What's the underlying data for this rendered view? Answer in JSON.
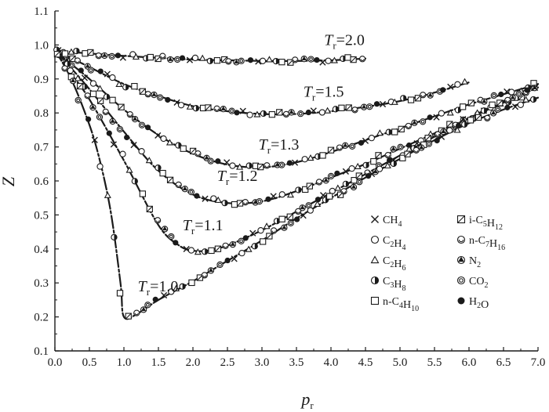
{
  "chart_data": {
    "type": "line",
    "xlabel": "p",
    "xlabel_sub": "r",
    "ylabel": "Z",
    "xlim": [
      0.0,
      7.0
    ],
    "ylim": [
      0.1,
      1.1
    ],
    "xticks": [
      "0.0",
      "0.5",
      "1.0",
      "1.5",
      "2.0",
      "2.5",
      "3.0",
      "3.5",
      "4.0",
      "4.5",
      "5.0",
      "5.5",
      "6.0",
      "6.5",
      "7.0"
    ],
    "yticks": [
      "0.1",
      "0.2",
      "0.3",
      "0.4",
      "0.5",
      "0.6",
      "0.7",
      "0.8",
      "0.9",
      "1.0",
      "1.1"
    ],
    "grid": false,
    "legend_position": "right, inside plot",
    "curves": [
      {
        "label_main": "T",
        "label_sub": "r",
        "label_value": "=2.0",
        "label_at": [
          3.9,
          1.0
        ],
        "x": [
          0.0,
          0.2,
          0.5,
          1.0,
          1.5,
          2.0,
          2.5,
          3.0,
          3.5,
          4.0,
          4.5
        ],
        "y": [
          0.985,
          0.98,
          0.975,
          0.968,
          0.962,
          0.957,
          0.955,
          0.953,
          0.953,
          0.955,
          0.96
        ]
      },
      {
        "label_main": "T",
        "label_sub": "r",
        "label_value": "=1.5",
        "label_at": [
          3.6,
          0.848
        ],
        "x": [
          0.0,
          0.2,
          0.5,
          1.0,
          1.5,
          2.0,
          2.5,
          3.0,
          3.5,
          4.0,
          4.5,
          5.0,
          5.5,
          6.0
        ],
        "y": [
          0.985,
          0.965,
          0.935,
          0.885,
          0.85,
          0.82,
          0.805,
          0.797,
          0.797,
          0.805,
          0.818,
          0.835,
          0.86,
          0.89
        ]
      },
      {
        "label_main": "T",
        "label_sub": "r",
        "label_value": "=1.3",
        "label_at": [
          2.95,
          0.692
        ],
        "x": [
          0.0,
          0.2,
          0.5,
          1.0,
          1.5,
          2.0,
          2.5,
          3.0,
          3.5,
          4.0,
          4.5,
          5.0,
          5.5,
          6.0,
          6.5,
          7.0
        ],
        "y": [
          0.985,
          0.95,
          0.9,
          0.81,
          0.735,
          0.68,
          0.648,
          0.64,
          0.655,
          0.685,
          0.72,
          0.755,
          0.79,
          0.825,
          0.855,
          0.885
        ]
      },
      {
        "label_main": "T",
        "label_sub": "r",
        "label_value": "=1.2",
        "label_at": [
          2.35,
          0.6
        ],
        "x": [
          0.0,
          0.2,
          0.5,
          1.0,
          1.5,
          2.0,
          2.5,
          3.0,
          3.5,
          4.0,
          4.5,
          5.0,
          5.5,
          6.0,
          6.5,
          7.0
        ],
        "y": [
          0.985,
          0.94,
          0.87,
          0.745,
          0.63,
          0.56,
          0.535,
          0.54,
          0.57,
          0.61,
          0.65,
          0.695,
          0.74,
          0.785,
          0.83,
          0.875
        ]
      },
      {
        "label_main": "T",
        "label_sub": "r",
        "label_value": "=1.1",
        "label_at": [
          1.85,
          0.455
        ],
        "x": [
          0.0,
          0.2,
          0.5,
          1.0,
          1.5,
          1.8,
          2.0,
          2.2,
          2.5,
          3.0,
          3.5,
          4.0,
          4.5,
          5.0,
          5.5,
          6.0,
          6.5,
          7.0
        ],
        "y": [
          0.985,
          0.925,
          0.84,
          0.66,
          0.47,
          0.41,
          0.395,
          0.395,
          0.41,
          0.455,
          0.51,
          0.565,
          0.62,
          0.675,
          0.73,
          0.785,
          0.835,
          0.885
        ]
      },
      {
        "label_main": "T",
        "label_sub": "r",
        "label_value": "=1.0",
        "label_at": [
          1.2,
          0.275
        ],
        "x": [
          0.0,
          0.2,
          0.4,
          0.6,
          0.8,
          0.95,
          1.0,
          1.2,
          1.5,
          2.0,
          2.5,
          3.0,
          3.5,
          4.0,
          4.5,
          5.0,
          5.5,
          6.0,
          6.5,
          7.0
        ],
        "y": [
          0.985,
          0.915,
          0.82,
          0.7,
          0.52,
          0.3,
          0.2,
          0.21,
          0.25,
          0.305,
          0.365,
          0.425,
          0.49,
          0.55,
          0.61,
          0.665,
          0.72,
          0.77,
          0.81,
          0.845
        ]
      }
    ],
    "series": [
      {
        "name": "CH",
        "sub": "4",
        "marker": "x"
      },
      {
        "name": "C",
        "sub": "2",
        "name2": "H",
        "sub2": "4",
        "marker": "circle-open"
      },
      {
        "name": "C",
        "sub": "2",
        "name2": "H",
        "sub2": "6",
        "marker": "triangle-open"
      },
      {
        "name": "C",
        "sub": "3",
        "name2": "H",
        "sub2": "8",
        "marker": "circle-half"
      },
      {
        "name": "n-C",
        "sub": "4",
        "name2": "H",
        "sub2": "10",
        "marker": "square-open"
      },
      {
        "name": "i-C",
        "sub": "5",
        "name2": "H",
        "sub2": "12",
        "marker": "square-slash"
      },
      {
        "name": "n-C",
        "sub": "7",
        "name2": "H",
        "sub2": "16",
        "marker": "circle-cup"
      },
      {
        "name": "N",
        "sub": "2",
        "marker": "circle-tri"
      },
      {
        "name": "CO",
        "sub": "2",
        "marker": "circle-double"
      },
      {
        "name": "H",
        "sub": "2",
        "name2": "O",
        "marker": "circle-filled"
      }
    ]
  },
  "colors": {
    "ink": "#1a1a1a",
    "background": "#ffffff"
  }
}
